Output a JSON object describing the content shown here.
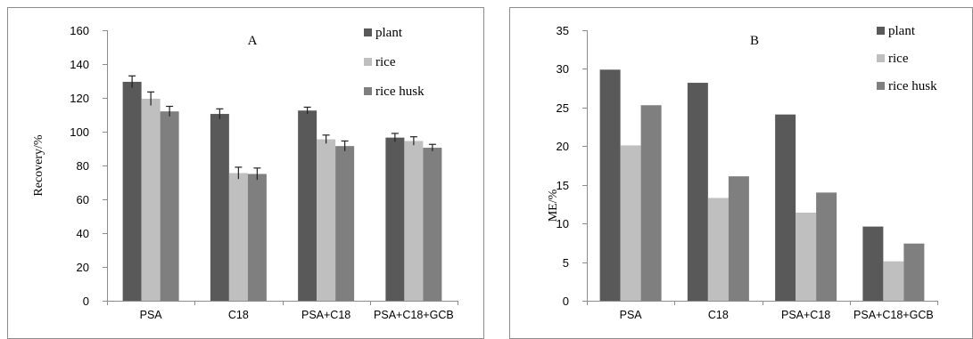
{
  "chart_data": [
    {
      "type": "bar",
      "panel_letter": "A",
      "ylabel": "Recovery/%",
      "ylim": [
        0,
        160
      ],
      "yticks": [
        0,
        20,
        40,
        60,
        80,
        100,
        120,
        140,
        160
      ],
      "categories": [
        "PSA",
        "C18",
        "PSA+C18",
        "PSA+C18+GCB"
      ],
      "series": [
        {
          "name": "plant",
          "color": "#595959",
          "values": [
            129.5,
            110.5,
            112.5,
            96.5
          ],
          "errors": [
            3.5,
            3.0,
            2.0,
            2.5
          ]
        },
        {
          "name": "rice",
          "color": "#bfbfbf",
          "values": [
            119.5,
            75.5,
            95.5,
            94.5
          ],
          "errors": [
            4.0,
            3.5,
            2.5,
            2.5
          ]
        },
        {
          "name": "rice husk",
          "color": "#7f7f7f",
          "values": [
            112.0,
            75.0,
            91.5,
            90.5
          ],
          "errors": [
            3.0,
            3.5,
            3.0,
            2.0
          ]
        }
      ],
      "legend_position": "top-right",
      "grid": false
    },
    {
      "type": "bar",
      "panel_letter": "B",
      "ylabel": "ME/%",
      "ylim": [
        0,
        35
      ],
      "yticks": [
        0,
        5,
        10,
        15,
        20,
        25,
        30,
        35
      ],
      "categories": [
        "PSA",
        "C18",
        "PSA+C18",
        "PSA+C18+GCB"
      ],
      "series": [
        {
          "name": "plant",
          "color": "#595959",
          "values": [
            29.9,
            28.2,
            24.1,
            9.6
          ]
        },
        {
          "name": "rice",
          "color": "#bfbfbf",
          "values": [
            20.1,
            13.3,
            11.4,
            5.1
          ]
        },
        {
          "name": "rice husk",
          "color": "#7f7f7f",
          "values": [
            25.3,
            16.1,
            14.0,
            7.4
          ]
        }
      ],
      "legend_position": "top-right",
      "grid": false
    }
  ]
}
